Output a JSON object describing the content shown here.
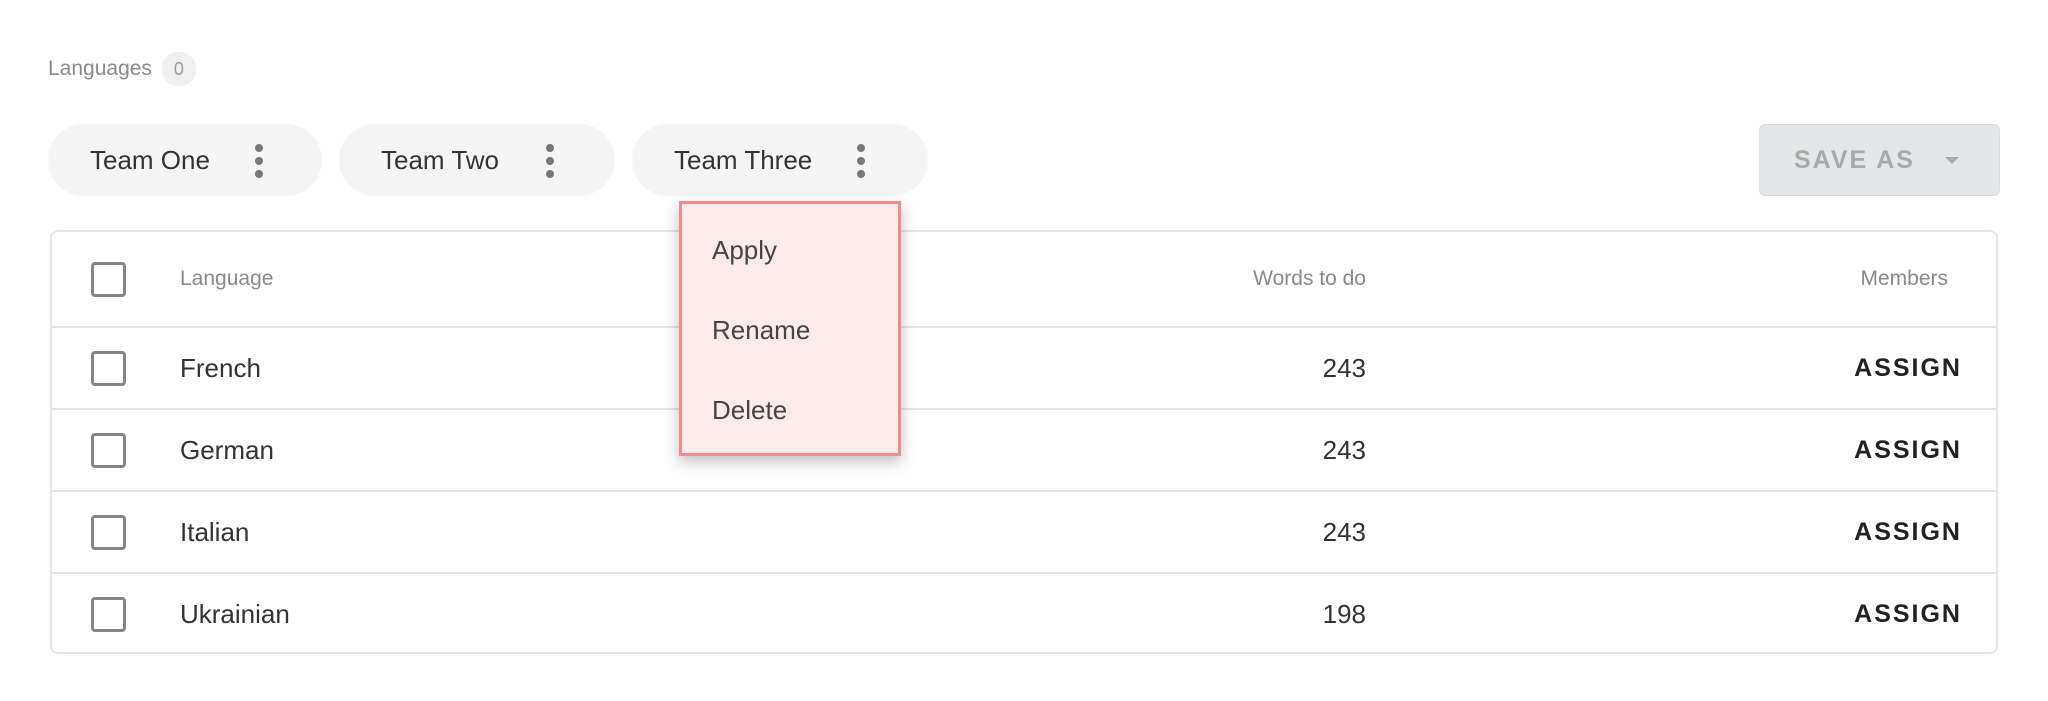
{
  "header": {
    "label": "Languages",
    "count": "0"
  },
  "teams": [
    {
      "label": "Team One"
    },
    {
      "label": "Team Two"
    },
    {
      "label": "Team Three"
    }
  ],
  "save_as": {
    "label": "SAVE AS"
  },
  "table": {
    "columns": {
      "language": "Language",
      "words": "Words to do",
      "members": "Members"
    },
    "rows": [
      {
        "language": "French",
        "words": "243",
        "action": "ASSIGN"
      },
      {
        "language": "German",
        "words": "243",
        "action": "ASSIGN"
      },
      {
        "language": "Italian",
        "words": "243",
        "action": "ASSIGN"
      },
      {
        "language": "Ukrainian",
        "words": "198",
        "action": "ASSIGN"
      }
    ]
  },
  "menu": {
    "items": [
      {
        "label": "Apply"
      },
      {
        "label": "Rename"
      },
      {
        "label": "Delete"
      }
    ]
  },
  "colors": {
    "menu_bg": "#fdeaea",
    "menu_border": "#f08c8c"
  }
}
